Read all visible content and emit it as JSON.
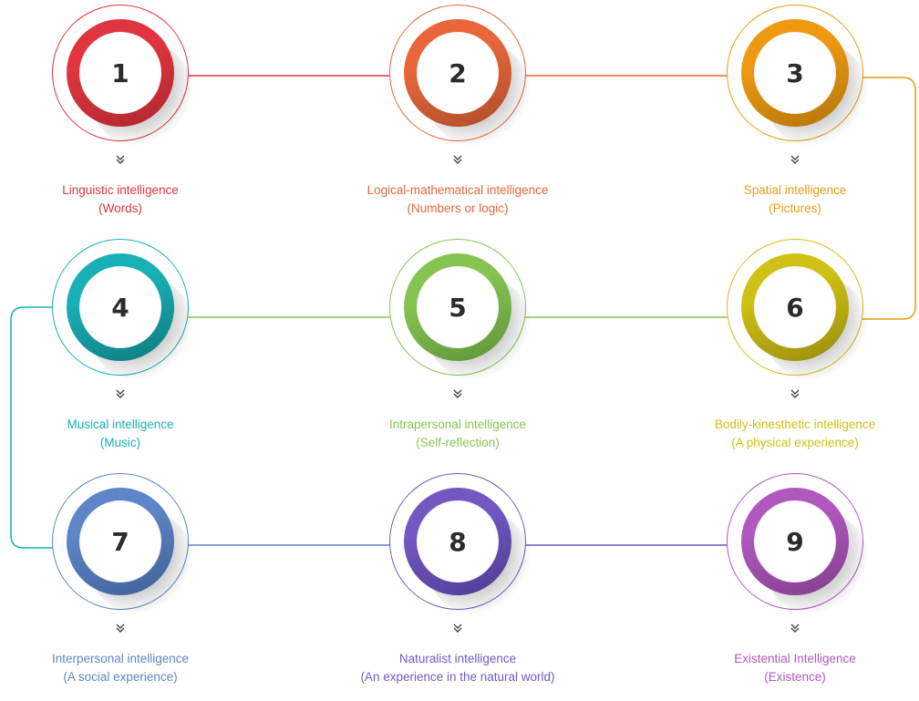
{
  "colors": {
    "c1": "#e0353f",
    "c2": "#e8663a",
    "c3": "#ee9a10",
    "c4": "#18b0b4",
    "c5": "#86c452",
    "c6": "#cfc014",
    "c7": "#5e85c8",
    "c8": "#7358c2",
    "c9": "#b058be"
  },
  "chevron_icon": "double-chevron-down-icon",
  "steps": [
    {
      "number": "1",
      "title": "Linguistic intelligence",
      "subtitle": "(Words)",
      "color": "#e0353f",
      "dark": "#b52a32"
    },
    {
      "number": "2",
      "title": "Logical-mathematical intelligence",
      "subtitle": "(Numbers or logic)",
      "color": "#e8663a",
      "dark": "#b8512d"
    },
    {
      "number": "3",
      "title": "Spatial intelligence",
      "subtitle": "(Pictures)",
      "color": "#ee9a10",
      "dark": "#bb7a0c"
    },
    {
      "number": "4",
      "title": "Musical intelligence",
      "subtitle": "(Music)",
      "color": "#18b0b4",
      "dark": "#0f8286"
    },
    {
      "number": "5",
      "title": "Intrapersonal intelligence",
      "subtitle": "(Self-reflection)",
      "color": "#86c452",
      "dark": "#669a3c"
    },
    {
      "number": "6",
      "title": "Bodily-kinesthetic intelligence",
      "subtitle": "(A physical experience)",
      "color": "#cfc014",
      "dark": "#a0940e"
    },
    {
      "number": "7",
      "title": "Interpersonal intelligence",
      "subtitle": "(A social experience)",
      "color": "#5e85c8",
      "dark": "#44659e"
    },
    {
      "number": "8",
      "title": "Naturalist intelligence",
      "subtitle": "(An experience in the natural world)",
      "color": "#7358c2",
      "dark": "#54409a"
    },
    {
      "number": "9",
      "title": "Existential Intelligence",
      "subtitle": "(Existence)",
      "color": "#b058be",
      "dark": "#884292"
    }
  ]
}
